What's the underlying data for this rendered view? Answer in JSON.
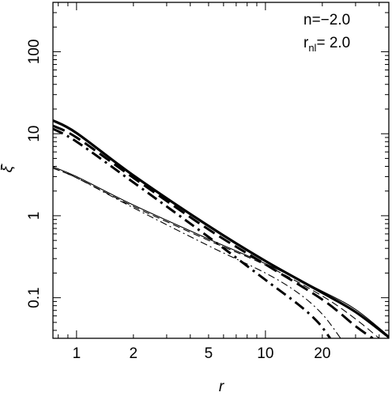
{
  "chart_data": {
    "type": "line",
    "title": "",
    "xlabel": "r",
    "ylabel": "ξ̄",
    "xscale": "log",
    "yscale": "log",
    "xlim": [
      0.75,
      45
    ],
    "ylim": [
      0.032,
      400
    ],
    "grid": false,
    "x_ticks": [
      1,
      2,
      5,
      10,
      20
    ],
    "x_tick_labels": [
      "1",
      "2",
      "5",
      "10",
      "20"
    ],
    "y_ticks": [
      0.1,
      1,
      10,
      100
    ],
    "y_tick_labels": [
      "0.1",
      "1",
      "10",
      "100"
    ],
    "annotations": {
      "n_label": "n=−2.0",
      "rnl_main": "r",
      "rnl_sub": "nl",
      "rnl_value": "= 2.0"
    },
    "series": [
      {
        "style": "thick-solid",
        "x": [
          0.75,
          1,
          2,
          5,
          10,
          20,
          30,
          45
        ],
        "y": [
          14.5,
          10.2,
          3.1,
          0.75,
          0.28,
          0.115,
          0.067,
          0.033
        ]
      },
      {
        "style": "thick-dash",
        "x": [
          0.75,
          1,
          2,
          5,
          10,
          20,
          30,
          37
        ],
        "y": [
          12.5,
          9.0,
          2.9,
          0.68,
          0.255,
          0.095,
          0.045,
          0.032
        ]
      },
      {
        "style": "thick-dashdot",
        "x": [
          0.75,
          1,
          2,
          5,
          10,
          15,
          19,
          22
        ],
        "y": [
          11.5,
          8.0,
          2.55,
          0.55,
          0.165,
          0.082,
          0.05,
          0.032
        ]
      },
      {
        "style": "thin-solid",
        "x": [
          0.75,
          1,
          2,
          5,
          10,
          20,
          30,
          45
        ],
        "y": [
          3.95,
          3.0,
          1.35,
          0.52,
          0.26,
          0.12,
          0.072,
          0.034
        ]
      },
      {
        "style": "thin-dash",
        "x": [
          0.75,
          1,
          2,
          5,
          10,
          20,
          30,
          40
        ],
        "y": [
          3.8,
          2.9,
          1.3,
          0.5,
          0.25,
          0.105,
          0.055,
          0.032
        ]
      },
      {
        "style": "thin-dashdot",
        "x": [
          0.75,
          1,
          2,
          5,
          10,
          15,
          20,
          25
        ],
        "y": [
          3.8,
          2.9,
          1.25,
          0.43,
          0.2,
          0.113,
          0.063,
          0.032
        ]
      }
    ]
  }
}
